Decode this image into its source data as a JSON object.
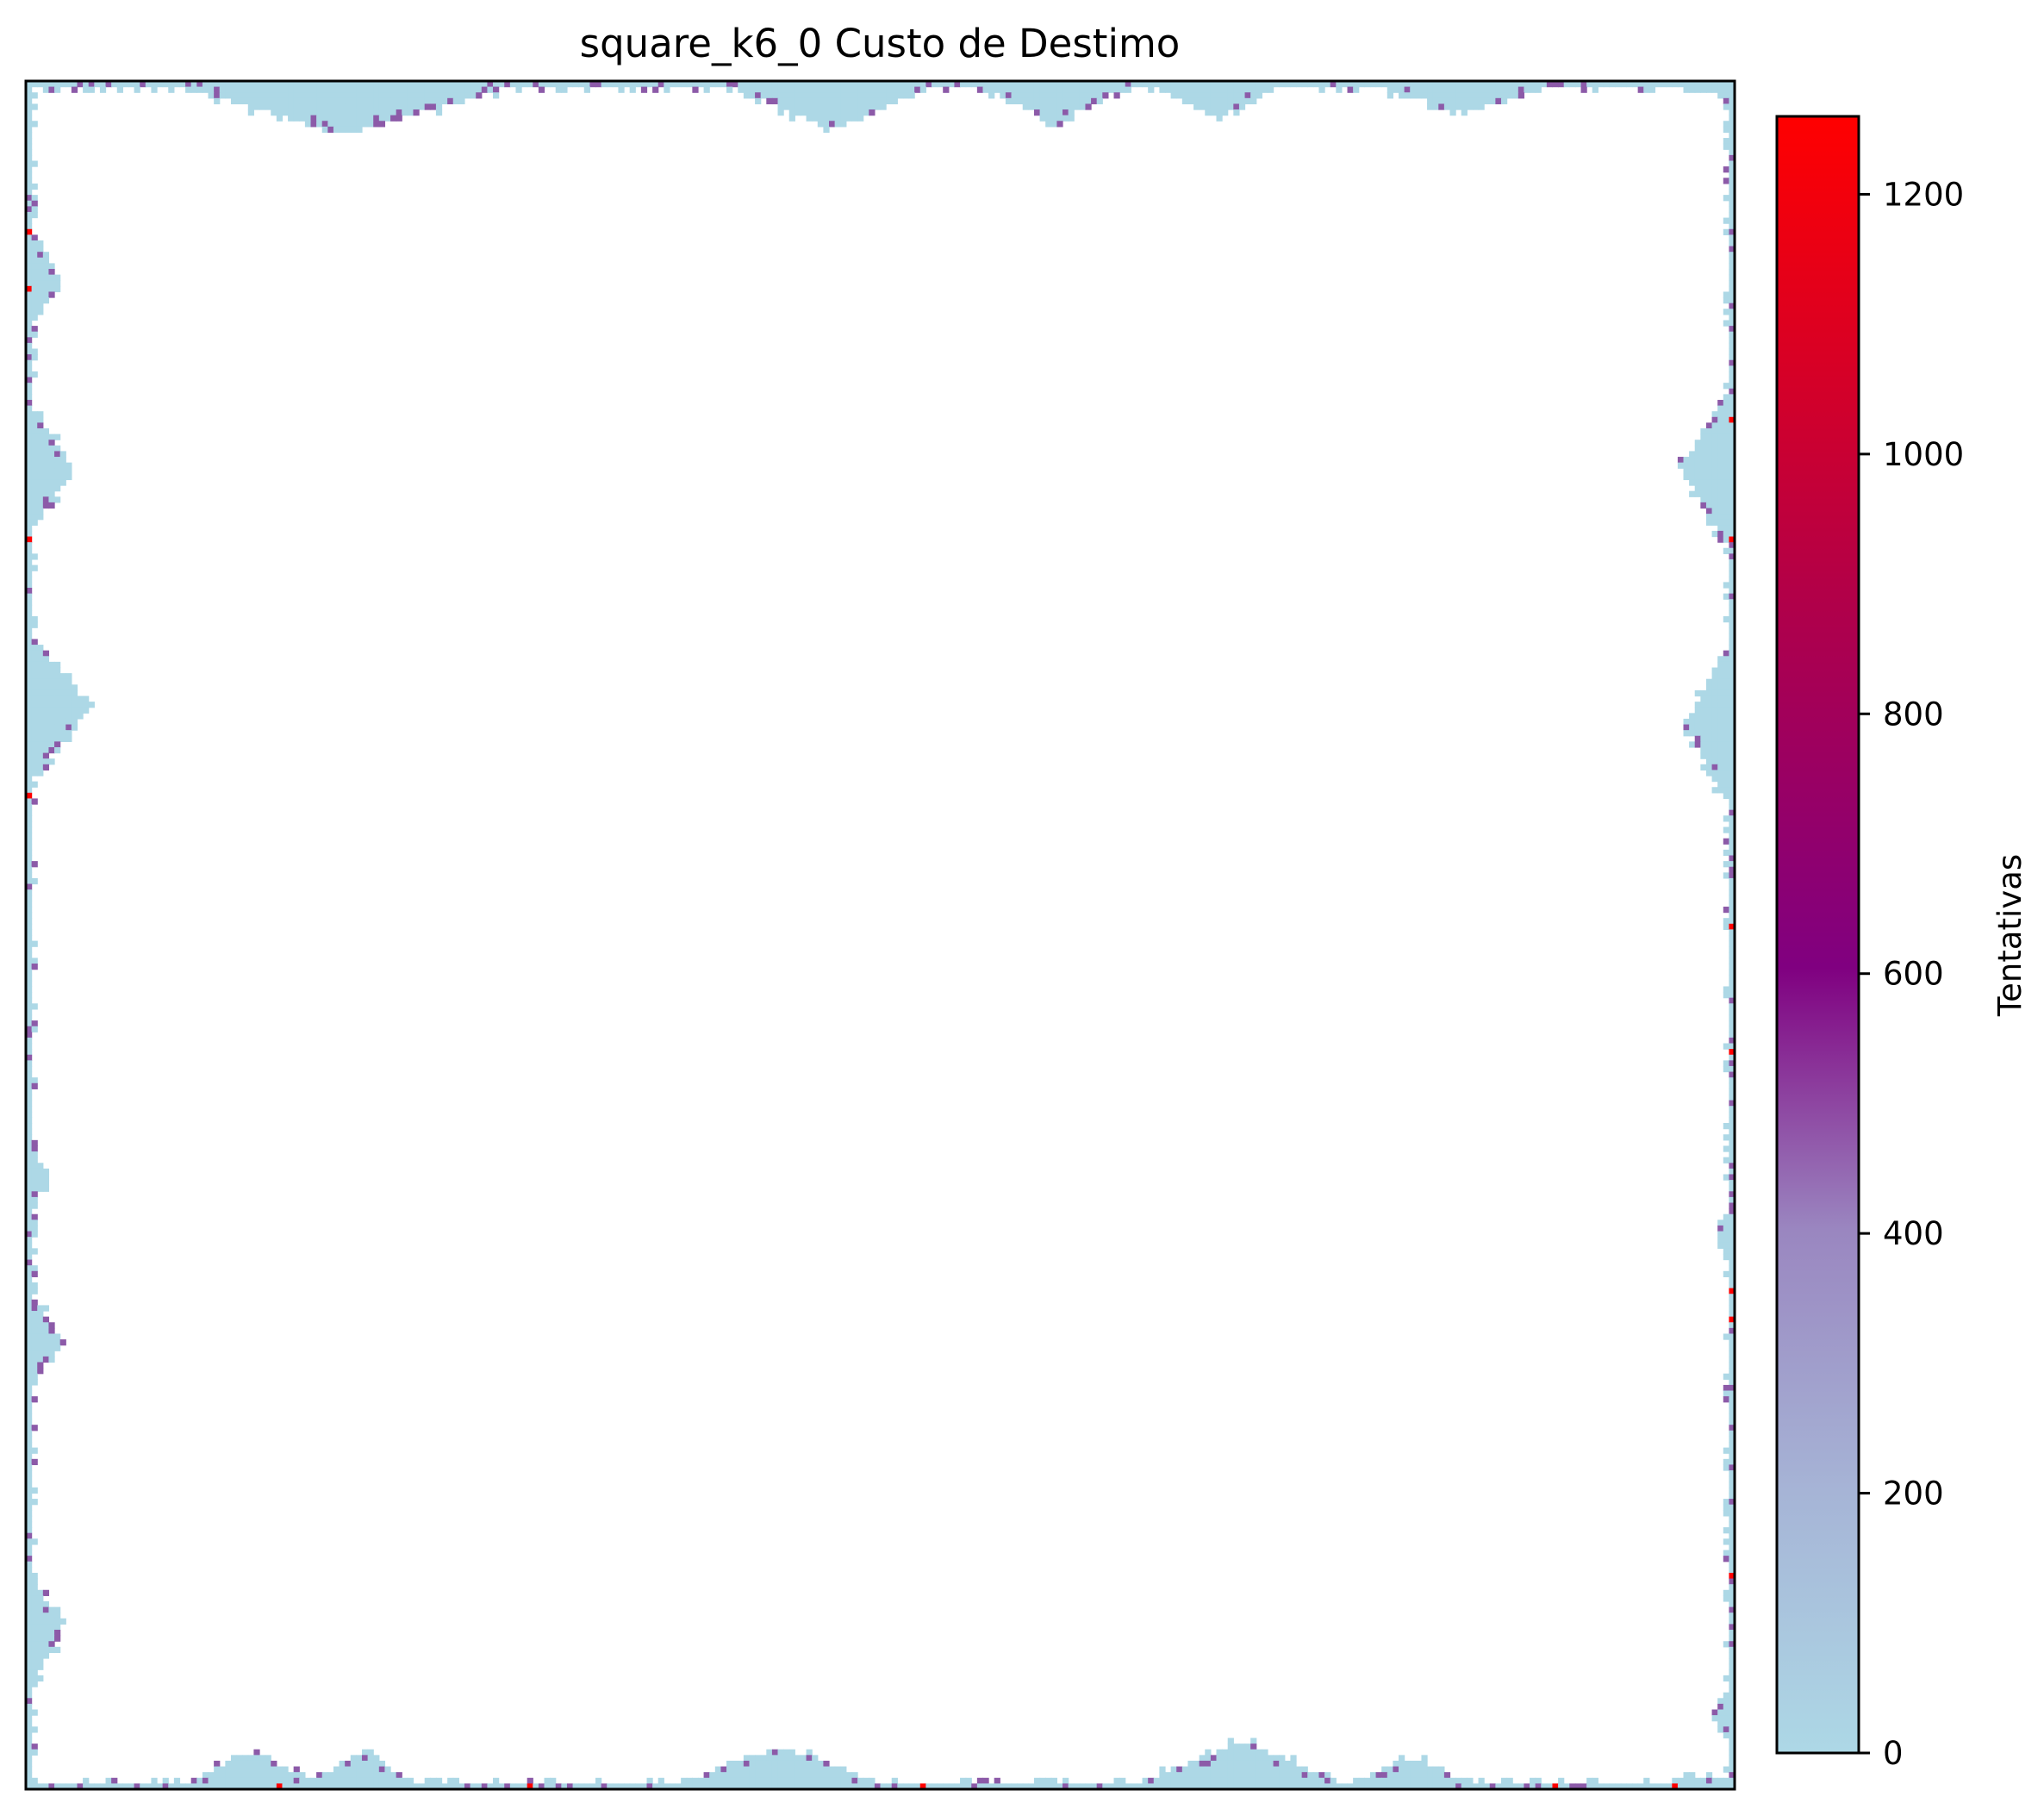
{
  "chart_data": {
    "type": "heatmap",
    "title": "square_k6_0 Custo de Destimo",
    "xlabel": "",
    "ylabel": "",
    "grid": false,
    "axes_ticks": false,
    "colorbar": {
      "label": "Tentativas",
      "range": [
        0,
        1260
      ],
      "ticks": [
        0,
        200,
        400,
        600,
        800,
        1000,
        1200
      ],
      "tick_labels": [
        "0",
        "200",
        "400",
        "600",
        "800",
        "1000",
        "1200"
      ],
      "colors": [
        "#add8e6",
        "#9a86c0",
        "#800080",
        "#c8003c",
        "#ff0000"
      ]
    },
    "colors": {
      "empty": "#ffffff",
      "low": "#add8e6",
      "mid": "#8c5aa8",
      "high": "#ff0000"
    },
    "description_of_pattern": "",
    "values_note": ""
  }
}
